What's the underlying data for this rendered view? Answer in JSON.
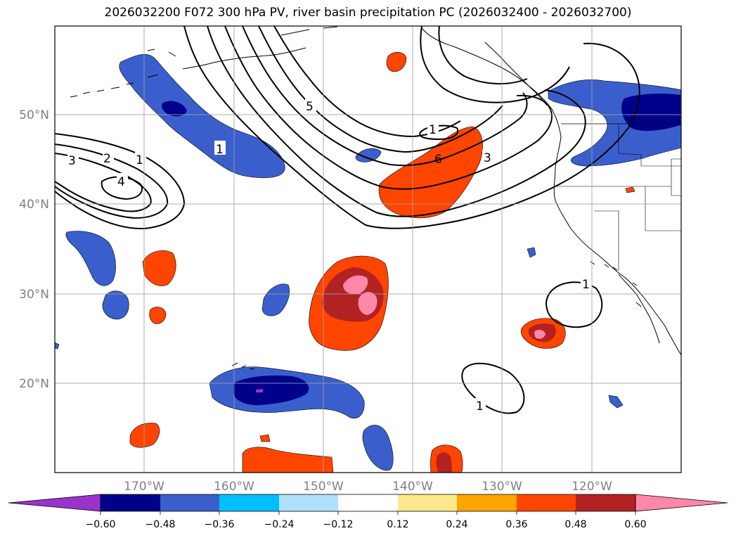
{
  "title": "2026032200 F072 300 hPa PV, river basin precipitation PC (2026032400 - 2026032700)",
  "map": {
    "lon_labels": [
      "170°W",
      "160°W",
      "150°W",
      "140°W",
      "130°W",
      "120°W"
    ],
    "lat_labels": [
      "50°N",
      "40°N",
      "30°N",
      "20°N"
    ],
    "contour_labels": [
      "1",
      "2",
      "3",
      "4",
      "5",
      "6",
      "1",
      "3",
      "1",
      "1"
    ]
  },
  "colorbar": {
    "tick_labels": [
      "−0.60",
      "−0.48",
      "−0.36",
      "−0.24",
      "−0.12",
      "0.12",
      "0.24",
      "0.36",
      "0.48",
      "0.60"
    ],
    "colors": [
      "#9933cc",
      "#00008b",
      "#3a5fcd",
      "#00bfff",
      "#b0e2ff",
      "#ffffff",
      "#ffe88c",
      "#ffa500",
      "#ff4500",
      "#b22222",
      "#ff88aa"
    ]
  }
}
